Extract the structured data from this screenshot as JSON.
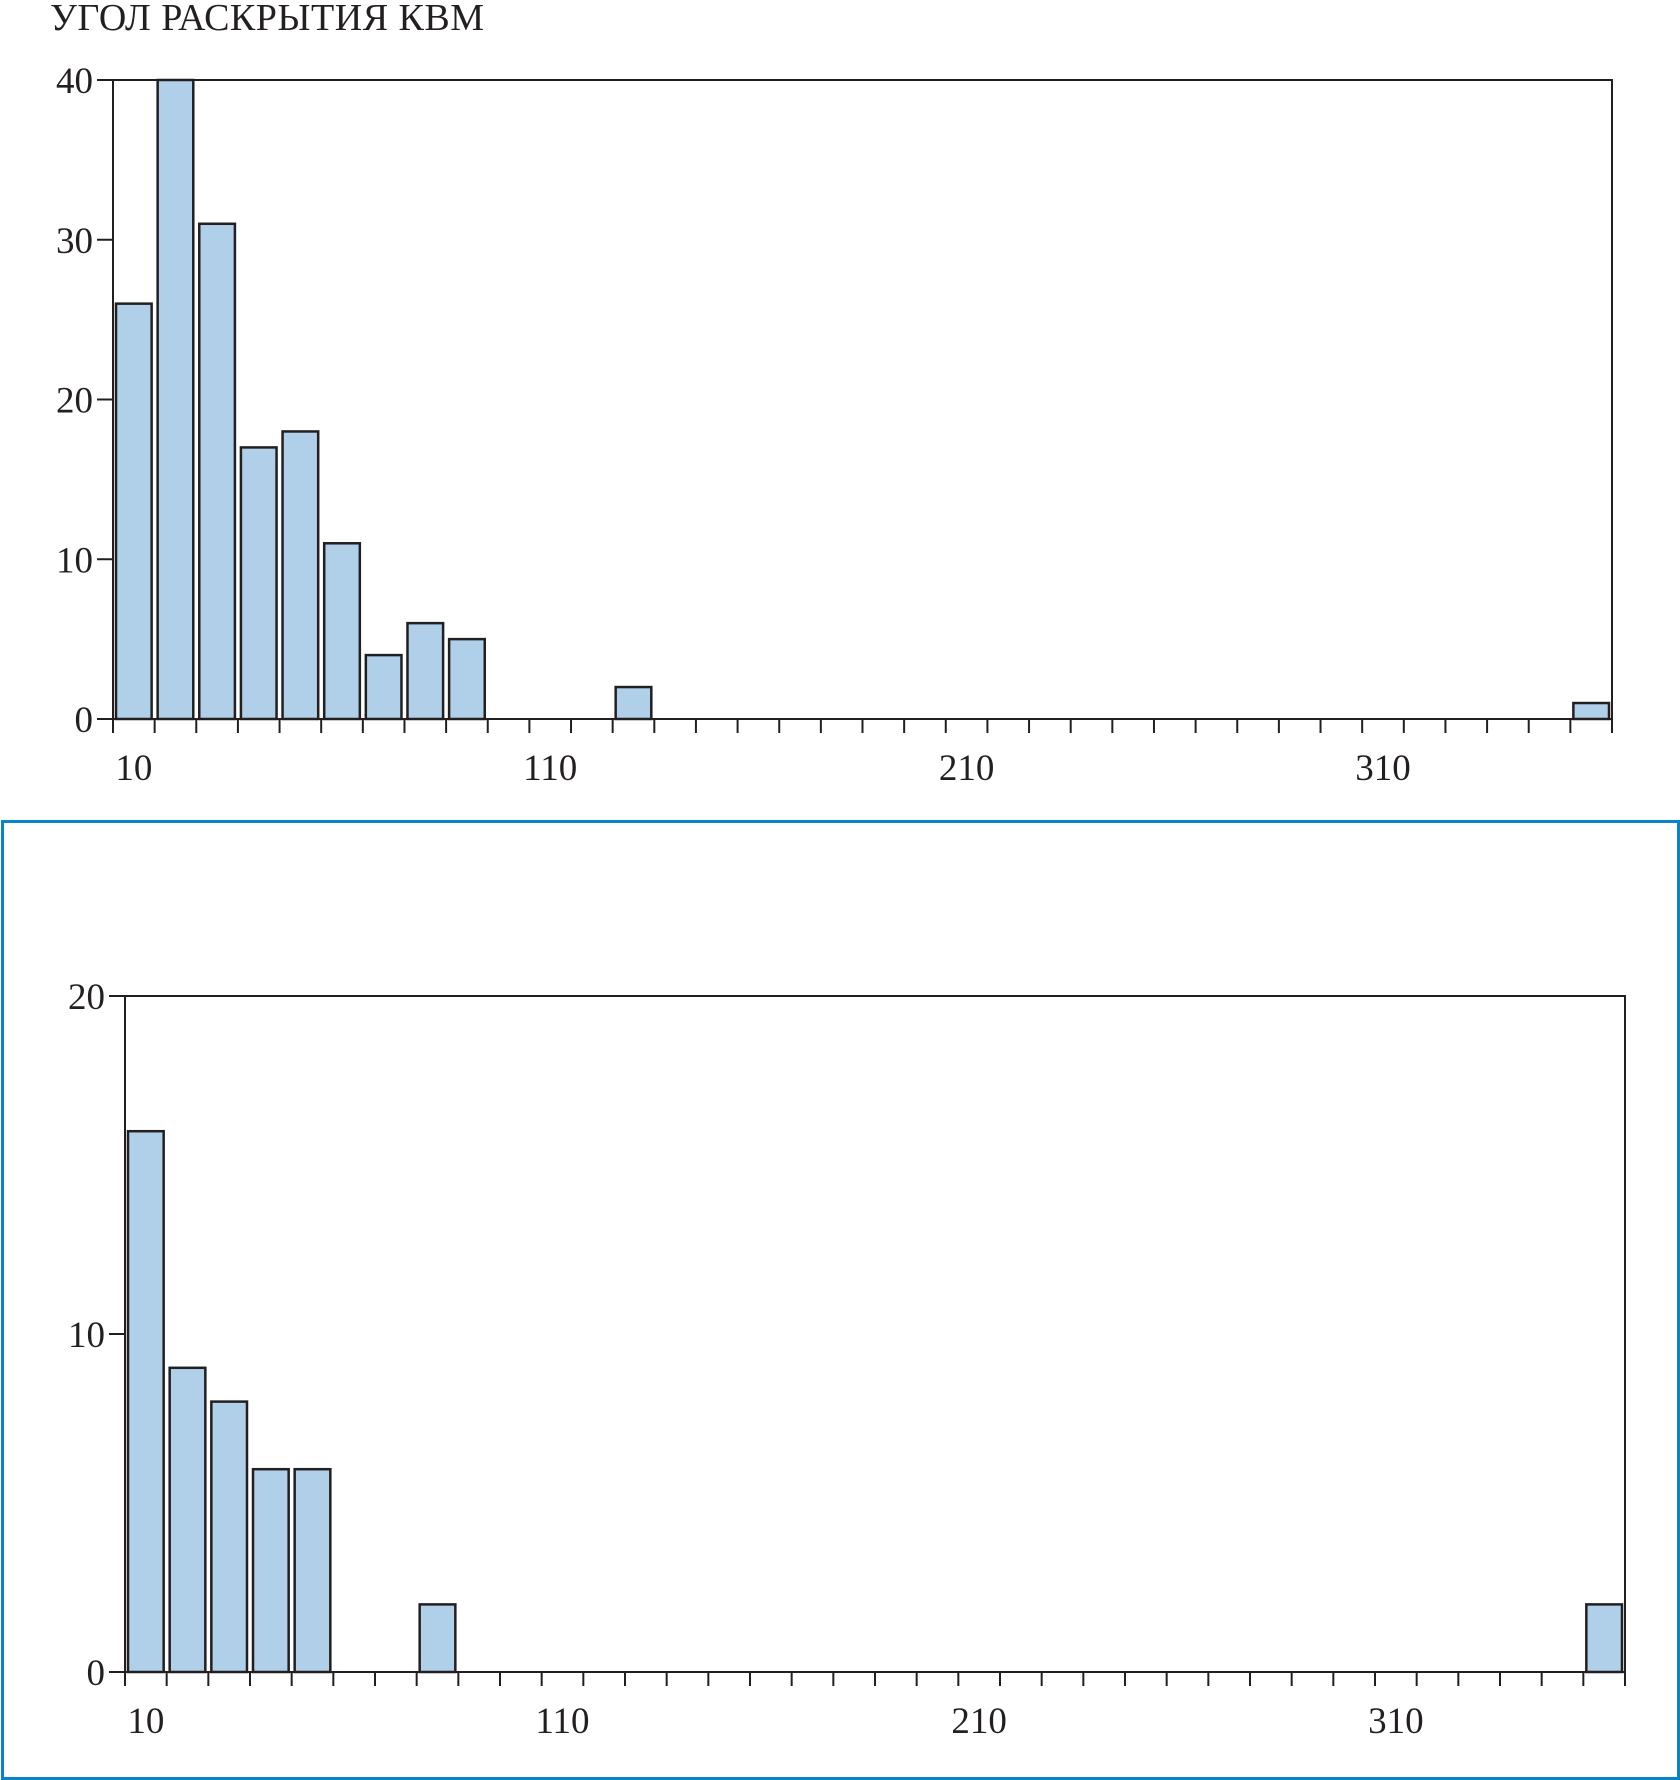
{
  "chart_data": [
    {
      "type": "bar",
      "title": "УГОЛ РАСКРЫТИЯ КВМ",
      "xlabel": "",
      "ylabel": "",
      "bin_width": 10,
      "x": [
        10,
        20,
        30,
        40,
        50,
        60,
        70,
        80,
        90,
        130,
        360
      ],
      "values": [
        26,
        40,
        31,
        17,
        18,
        11,
        4,
        6,
        5,
        2,
        1
      ],
      "xlim": [
        5,
        365
      ],
      "ylim": [
        0,
        40
      ],
      "yticks": [
        "0",
        "10",
        "20",
        "30",
        "40"
      ],
      "yticks_values": [
        0,
        10,
        20,
        30,
        40
      ],
      "xticks": [
        "10",
        "110",
        "210",
        "310"
      ],
      "xticks_values": [
        10,
        110,
        210,
        310
      ],
      "bar_color": "#b0cfe8",
      "edge_color": "#231f20"
    },
    {
      "type": "bar",
      "title": "",
      "xlabel": "",
      "ylabel": "",
      "bin_width": 10,
      "x": [
        10,
        20,
        30,
        40,
        50,
        80,
        360
      ],
      "values": [
        16,
        9,
        8,
        6,
        6,
        2,
        2
      ],
      "xlim": [
        5,
        365
      ],
      "ylim": [
        0,
        20
      ],
      "yticks": [
        "0",
        "10",
        "20"
      ],
      "yticks_values": [
        0,
        10,
        20
      ],
      "xticks": [
        "10",
        "110",
        "210",
        "310"
      ],
      "xticks_values": [
        10,
        110,
        210,
        310
      ],
      "bar_color": "#b0cfe8",
      "edge_color": "#231f20",
      "frame_color": "#0a84c8"
    }
  ]
}
